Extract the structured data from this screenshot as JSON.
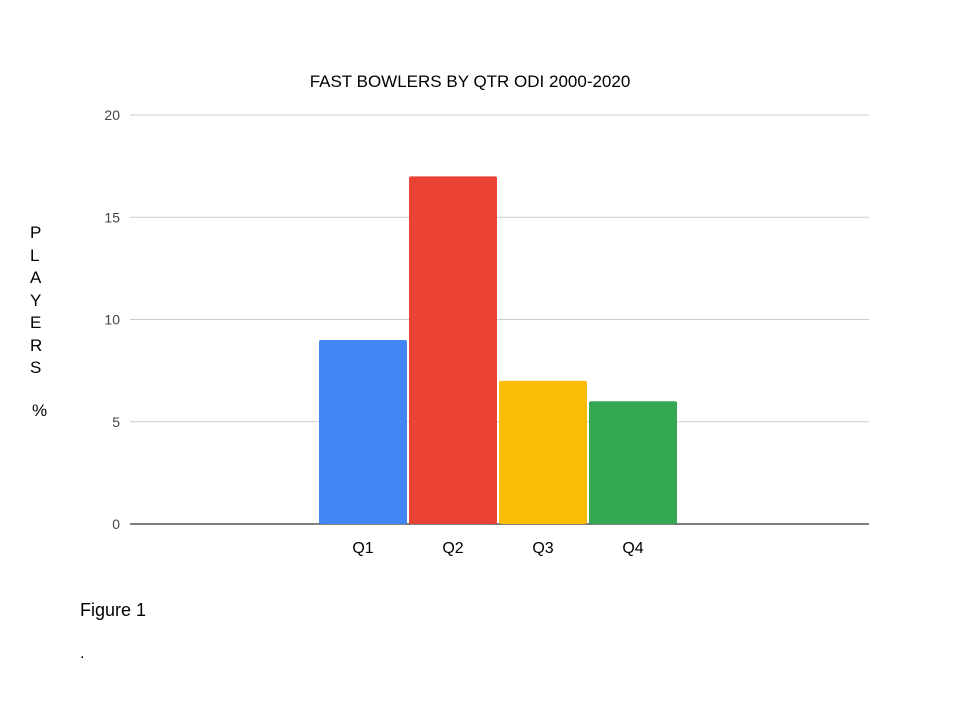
{
  "chart_data": {
    "type": "bar",
    "title": "FAST BOWLERS BY QTR ODI 2000-2020",
    "xlabel": "",
    "ylabel": "PLAYERS",
    "ylabel_unit": "%",
    "categories": [
      "Q1",
      "Q2",
      "Q3",
      "Q4"
    ],
    "values": [
      9,
      17,
      7,
      6
    ],
    "colors": [
      "#4285f4",
      "#ea4335",
      "#fbbc04",
      "#34a853"
    ],
    "ylim": [
      0,
      20
    ],
    "yticks": [
      0,
      5,
      10,
      15,
      20
    ],
    "grid": true,
    "legend": "none"
  },
  "caption": "Figure 1",
  "trailing_mark": "."
}
